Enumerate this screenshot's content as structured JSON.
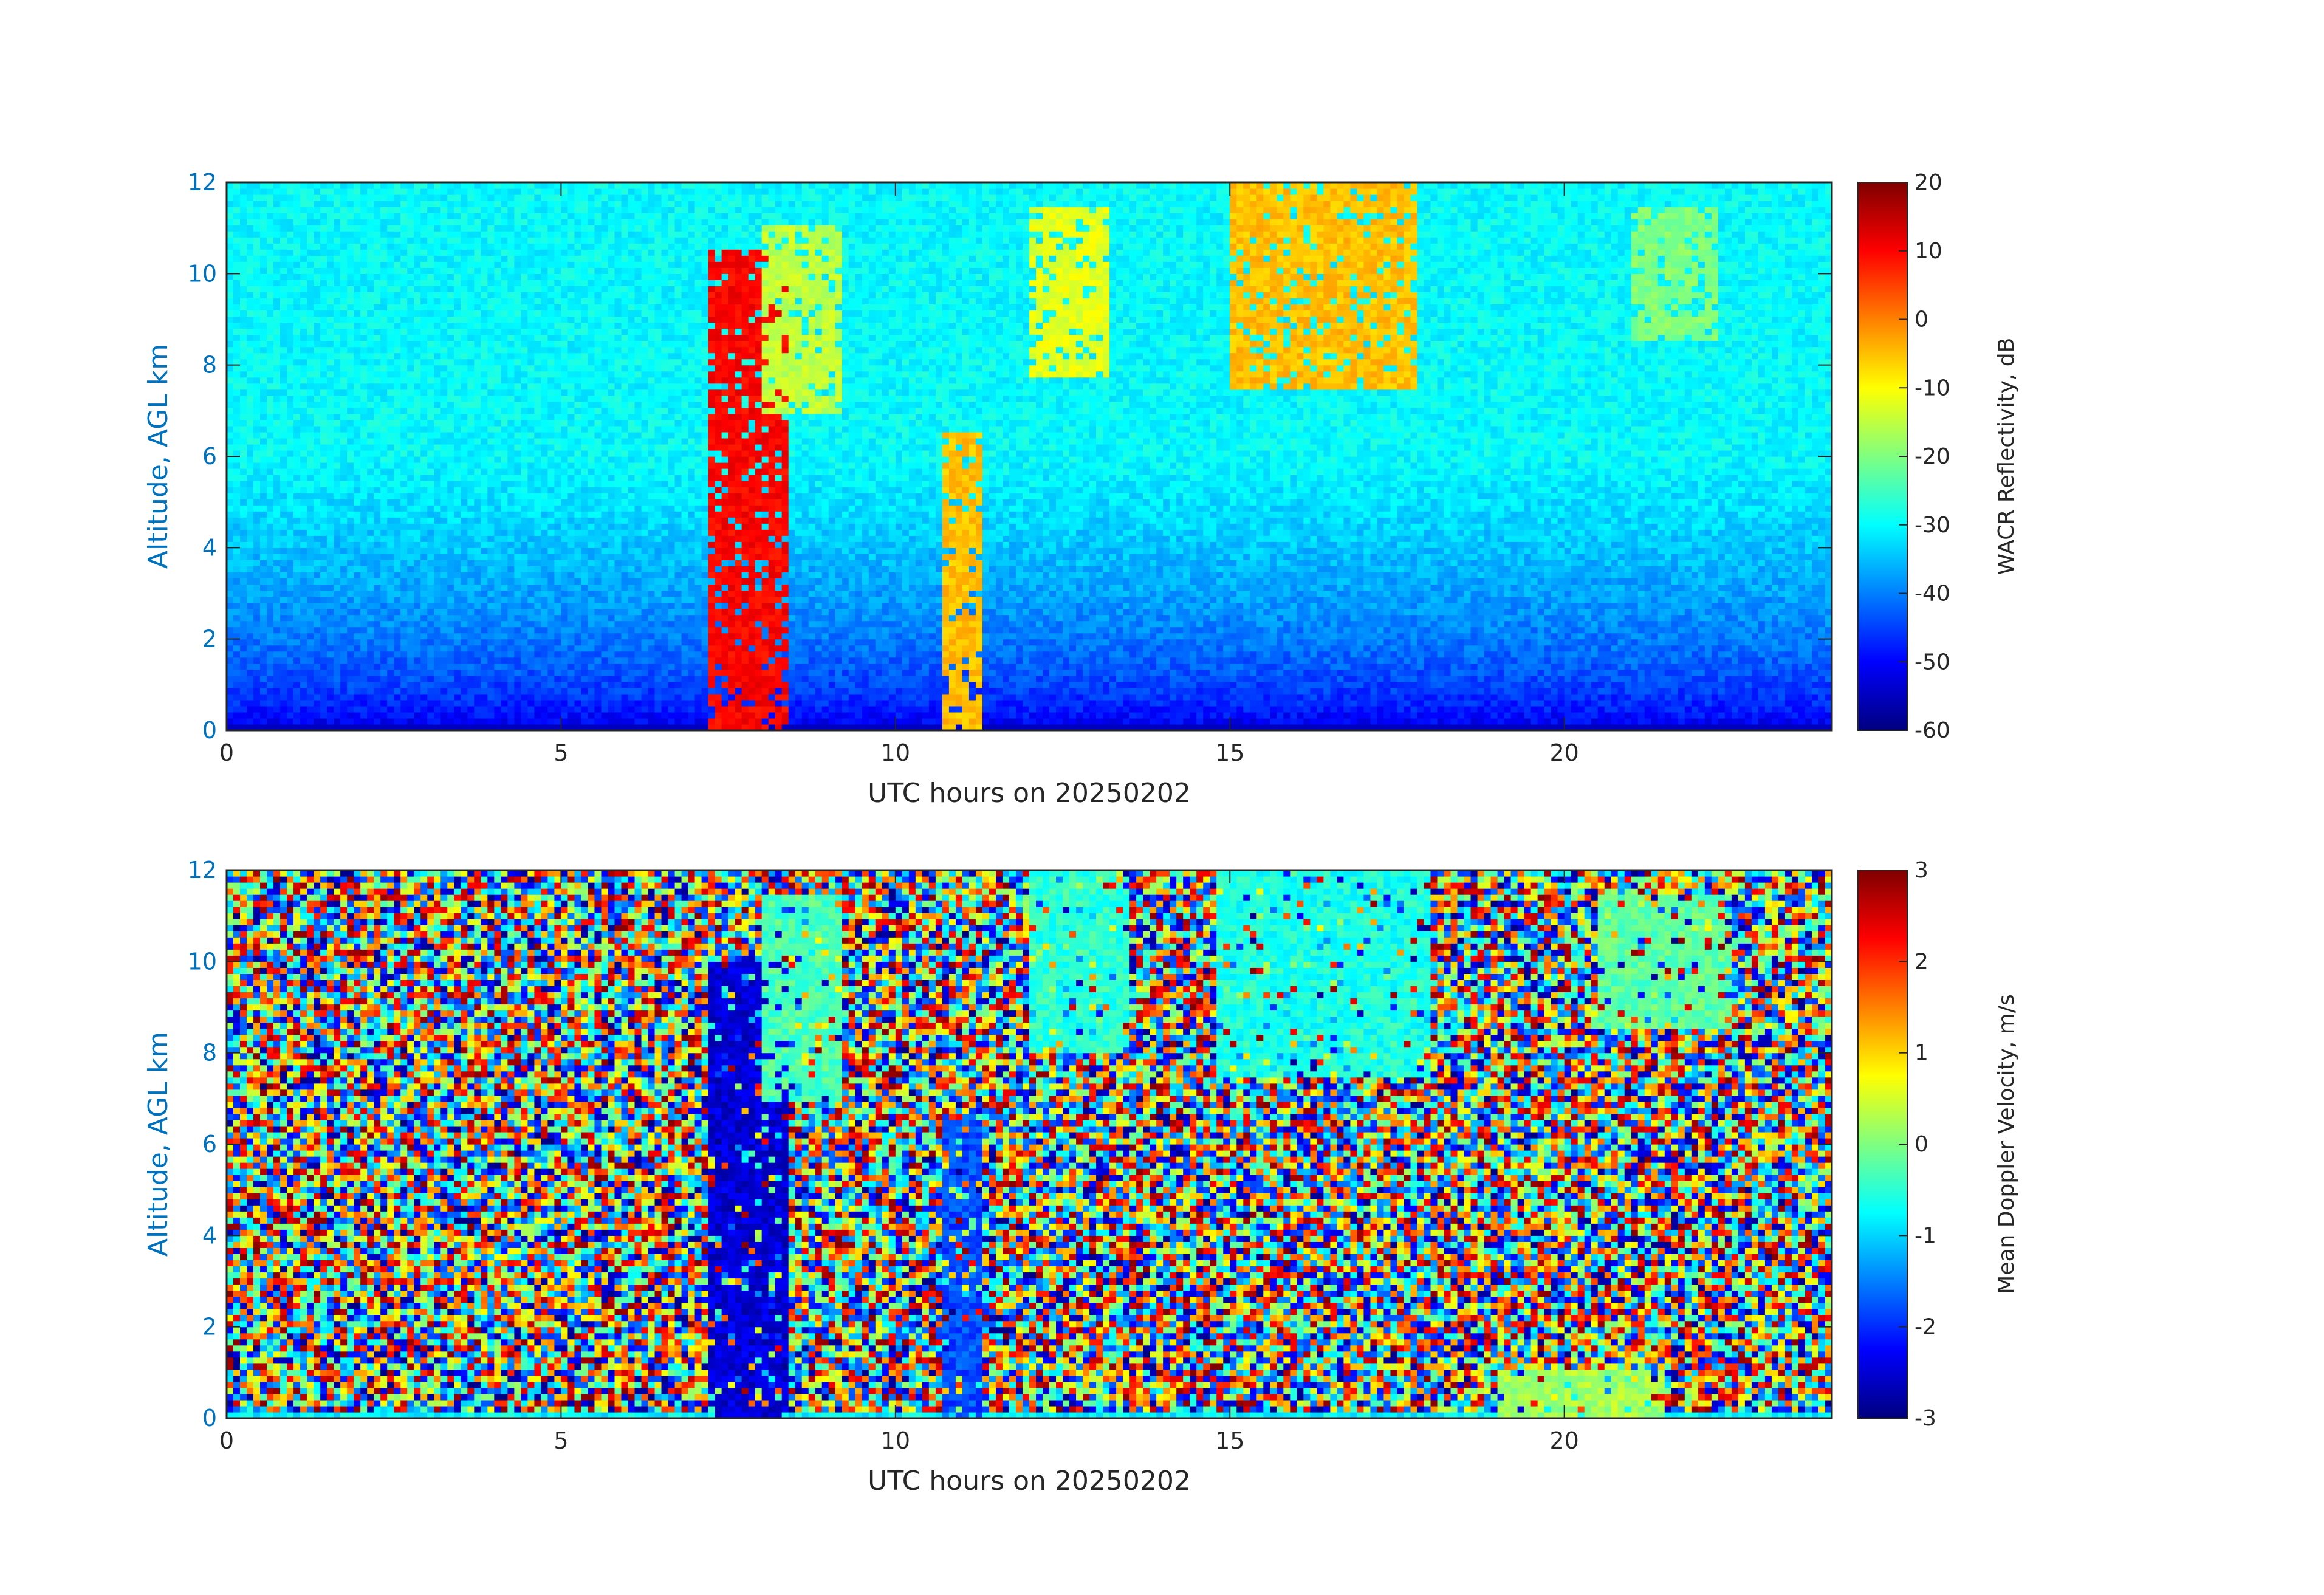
{
  "chart_data": [
    {
      "type": "heatmap",
      "panel": "reflectivity",
      "title": "",
      "xlabel": "UTC hours on 20250202",
      "ylabel": "Altitude, AGL km",
      "xlim": [
        0,
        24
      ],
      "ylim": [
        0,
        12
      ],
      "xticks": [
        0,
        5,
        10,
        15,
        20
      ],
      "yticks": [
        0,
        2,
        4,
        6,
        8,
        10,
        12
      ],
      "colormap": "jet",
      "colorbar": {
        "label": "WACR Reflectivity, dB",
        "range": [
          -60,
          20
        ],
        "ticks": [
          20,
          10,
          0,
          -10,
          -20,
          -30,
          -40,
          -50,
          -60
        ]
      },
      "features": [
        {
          "kind": "fallstreak",
          "x_start": 7.2,
          "x_end": 8.4,
          "y_bottom": 0,
          "y_top": 10.5,
          "value": 10
        },
        {
          "kind": "cloud",
          "x_start": 8.0,
          "x_end": 9.2,
          "y_bottom": 7.0,
          "y_top": 11.0,
          "value": -15
        },
        {
          "kind": "fallstreak",
          "x_start": 10.7,
          "x_end": 11.3,
          "y_bottom": 0,
          "y_top": 6.5,
          "value": -5
        },
        {
          "kind": "cloud",
          "x_start": 12.0,
          "x_end": 13.2,
          "y_bottom": 7.8,
          "y_top": 11.5,
          "value": -12
        },
        {
          "kind": "cloud",
          "x_start": 15.0,
          "x_end": 17.8,
          "y_bottom": 7.5,
          "y_top": 12.0,
          "value": -5
        },
        {
          "kind": "cloud",
          "x_start": 21.0,
          "x_end": 22.3,
          "y_bottom": 8.5,
          "y_top": 11.5,
          "value": -20
        }
      ]
    },
    {
      "type": "heatmap",
      "panel": "doppler_velocity",
      "title": "",
      "xlabel": "UTC hours on 20250202",
      "ylabel": "Altitude, AGL km",
      "xlim": [
        0,
        24
      ],
      "ylim": [
        0,
        12
      ],
      "xticks": [
        0,
        5,
        10,
        15,
        20
      ],
      "yticks": [
        0,
        2,
        4,
        6,
        8,
        10,
        12
      ],
      "colormap": "jet",
      "colorbar": {
        "label": "Mean Doppler Velocity, m/s",
        "range": [
          -3,
          3
        ],
        "ticks": [
          3,
          2,
          1,
          0,
          -1,
          -2,
          -3
        ]
      },
      "features": [
        {
          "kind": "fallstreak",
          "x_start": 7.2,
          "x_end": 8.4,
          "y_bottom": 0,
          "y_top": 10.0,
          "value": -2.5
        },
        {
          "kind": "cloud",
          "x_start": 8.0,
          "x_end": 9.2,
          "y_bottom": 7.0,
          "y_top": 11.5,
          "value": -0.3
        },
        {
          "kind": "fallstreak",
          "x_start": 10.7,
          "x_end": 11.3,
          "y_bottom": 0,
          "y_top": 6.5,
          "value": -1.8
        },
        {
          "kind": "cloud",
          "x_start": 12.0,
          "x_end": 13.5,
          "y_bottom": 8.0,
          "y_top": 12.0,
          "value": -0.5
        },
        {
          "kind": "cloud",
          "x_start": 14.8,
          "x_end": 18.0,
          "y_bottom": 7.5,
          "y_top": 12.0,
          "value": -0.6
        },
        {
          "kind": "cloud",
          "x_start": 20.5,
          "x_end": 22.5,
          "y_bottom": 8.5,
          "y_top": 11.5,
          "value": -0.2
        },
        {
          "kind": "surface_layer",
          "x_start": 19.0,
          "x_end": 21.5,
          "y_bottom": 0,
          "y_top": 1.0,
          "value": 0.2
        }
      ]
    }
  ]
}
